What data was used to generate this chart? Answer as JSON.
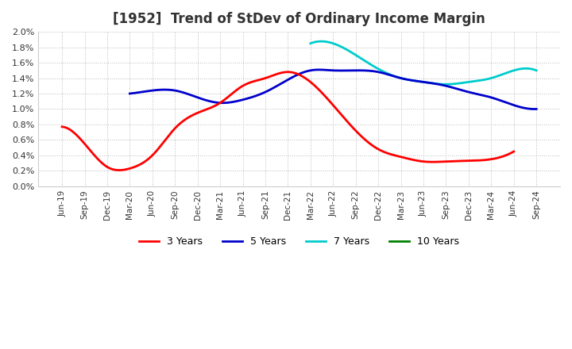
{
  "title": "[1952]  Trend of StDev of Ordinary Income Margin",
  "ylim": [
    0.0,
    0.02
  ],
  "yticks": [
    0.0,
    0.002,
    0.004,
    0.006,
    0.008,
    0.01,
    0.012,
    0.014,
    0.016,
    0.018,
    0.02
  ],
  "ytick_labels": [
    "0.0%",
    "0.2%",
    "0.4%",
    "0.6%",
    "0.8%",
    "1.0%",
    "1.2%",
    "1.4%",
    "1.6%",
    "1.8%",
    "2.0%"
  ],
  "x_labels": [
    "Jun-19",
    "Sep-19",
    "Dec-19",
    "Mar-20",
    "Jun-20",
    "Sep-20",
    "Dec-20",
    "Mar-21",
    "Jun-21",
    "Sep-21",
    "Dec-21",
    "Mar-22",
    "Jun-22",
    "Sep-22",
    "Dec-22",
    "Mar-23",
    "Jun-23",
    "Sep-23",
    "Dec-23",
    "Mar-24",
    "Jun-24",
    "Sep-24"
  ],
  "series": {
    "3 Years": {
      "color": "#ff0000",
      "values": [
        0.0077,
        0.0055,
        0.0025,
        0.0023,
        0.004,
        0.0075,
        0.0095,
        0.0108,
        0.013,
        0.014,
        0.0148,
        0.0135,
        0.0105,
        0.0072,
        0.0048,
        0.0038,
        0.0032,
        0.0032,
        0.0033,
        0.0035,
        0.0045,
        null
      ]
    },
    "5 Years": {
      "color": "#0000cc",
      "values": [
        null,
        null,
        null,
        0.012,
        0.0124,
        0.0124,
        0.0115,
        0.0108,
        0.0112,
        0.0122,
        0.0138,
        0.015,
        0.015,
        0.015,
        0.0148,
        0.014,
        0.0135,
        0.013,
        0.0122,
        0.0115,
        0.0105,
        0.01
      ]
    },
    "7 Years": {
      "color": "#00cccc",
      "values": [
        null,
        null,
        null,
        null,
        null,
        null,
        null,
        null,
        null,
        null,
        null,
        0.0185,
        0.0185,
        0.017,
        0.0152,
        0.014,
        0.0135,
        0.0132,
        0.0135,
        0.014,
        0.015,
        0.015
      ]
    },
    "10 Years": {
      "color": "#008000",
      "values": [
        null,
        null,
        null,
        null,
        null,
        null,
        null,
        null,
        null,
        null,
        null,
        null,
        null,
        null,
        null,
        null,
        null,
        null,
        null,
        null,
        null,
        null
      ]
    }
  },
  "legend_labels": [
    "3 Years",
    "5 Years",
    "7 Years",
    "10 Years"
  ],
  "background_color": "#ffffff",
  "plot_bg_color": "#ffffff",
  "grid_color": "#aaaaaa",
  "figsize": [
    7.2,
    4.4
  ],
  "dpi": 100
}
